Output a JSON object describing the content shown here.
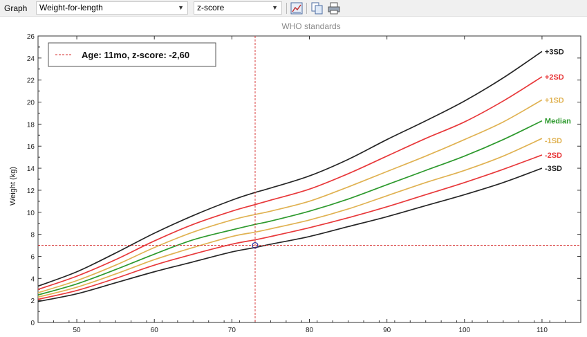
{
  "toolbar": {
    "graph_label": "Graph",
    "graph_select": "Weight-for-length",
    "mode_select": "z-score",
    "icons": [
      "chart-options-icon",
      "copy-icon",
      "print-icon"
    ]
  },
  "colors": {
    "sd3": "#262626",
    "sd2": "#e8393b",
    "sd1": "#e0b252",
    "median": "#2e9a2e",
    "marker": "#d42b2b",
    "point": "#2b2b9a"
  },
  "chart_data": {
    "type": "line",
    "title": "WHO standards",
    "xlabel": "",
    "ylabel": "Weight (kg)",
    "xlim": [
      45,
      115
    ],
    "ylim": [
      0,
      26
    ],
    "x_ticks": [
      50,
      60,
      70,
      80,
      90,
      100,
      110
    ],
    "y_ticks": [
      0,
      2,
      4,
      6,
      8,
      10,
      12,
      14,
      16,
      18,
      20,
      22,
      24,
      26
    ],
    "x": [
      45,
      50,
      55,
      60,
      65,
      70,
      73,
      75,
      80,
      85,
      90,
      95,
      100,
      105,
      110
    ],
    "series": [
      {
        "name": "+3SD",
        "color_key": "sd3",
        "values": [
          3.3,
          4.6,
          6.3,
          8.1,
          9.7,
          11.1,
          11.8,
          12.2,
          13.3,
          14.8,
          16.6,
          18.3,
          20.1,
          22.2,
          24.6
        ]
      },
      {
        "name": "+2SD",
        "color_key": "sd2",
        "values": [
          3.0,
          4.2,
          5.7,
          7.4,
          8.9,
          10.1,
          10.7,
          11.1,
          12.1,
          13.5,
          15.1,
          16.7,
          18.2,
          20.1,
          22.3
        ]
      },
      {
        "name": "+1SD",
        "color_key": "sd1",
        "values": [
          2.7,
          3.8,
          5.2,
          6.8,
          8.2,
          9.3,
          9.8,
          10.1,
          11.0,
          12.3,
          13.7,
          15.1,
          16.6,
          18.2,
          20.2
        ]
      },
      {
        "name": "Median",
        "color_key": "median",
        "values": [
          2.5,
          3.5,
          4.8,
          6.2,
          7.5,
          8.4,
          8.9,
          9.2,
          10.1,
          11.2,
          12.5,
          13.8,
          15.1,
          16.6,
          18.3
        ]
      },
      {
        "name": "-1SD",
        "color_key": "sd1",
        "values": [
          2.3,
          3.2,
          4.4,
          5.7,
          6.8,
          7.8,
          8.2,
          8.5,
          9.3,
          10.3,
          11.5,
          12.7,
          13.8,
          15.1,
          16.7
        ]
      },
      {
        "name": "-2SD",
        "color_key": "sd2",
        "values": [
          2.1,
          2.9,
          4.0,
          5.2,
          6.2,
          7.1,
          7.5,
          7.8,
          8.6,
          9.5,
          10.5,
          11.6,
          12.7,
          13.9,
          15.2
        ]
      },
      {
        "name": "-3SD",
        "color_key": "sd3",
        "values": [
          1.9,
          2.6,
          3.6,
          4.6,
          5.5,
          6.4,
          6.8,
          7.1,
          7.8,
          8.7,
          9.6,
          10.6,
          11.6,
          12.7,
          14.0
        ]
      }
    ],
    "marker": {
      "x": 73,
      "y": 7.0
    },
    "legend": {
      "text": "Age: 11mo, z-score: -2,60",
      "placement": "top-left"
    }
  }
}
